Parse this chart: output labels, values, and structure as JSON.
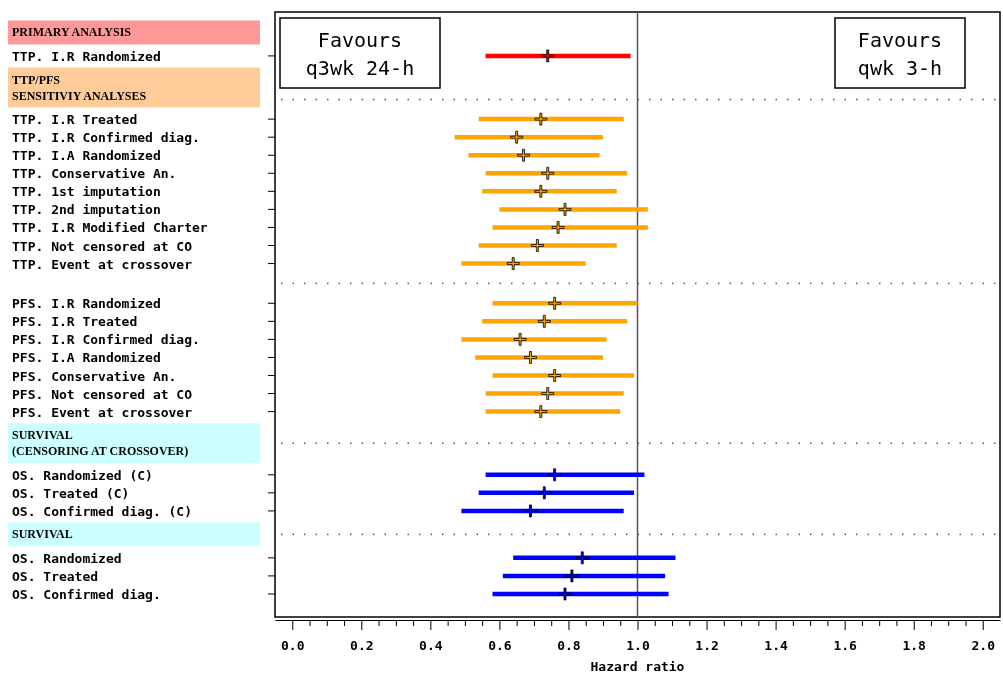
{
  "chart_data": {
    "type": "scatter",
    "orientation": "horizontal",
    "marker": "cross",
    "xlabel": "Hazard ratio",
    "categories": [
      "PRIMARY ANALYSIS",
      "TTP. I.R Randomized",
      "TTP/PFS\nSENSITIVIY ANALYSES",
      "TTP. I.R Treated",
      "TTP. I.R Confirmed diag.",
      "TTP. I.A Randomized",
      "TTP. Conservative An.",
      "TTP. 1st imputation",
      "TTP. 2nd imputation",
      "TTP. I.R Modified Charter",
      "TTP. Not censored at CO",
      "TTP. Event at crossover",
      null,
      "PFS. I.R Randomized",
      "PFS. I.R Treated",
      "PFS. I.R Confirmed diag.",
      "PFS. I.A Randomized",
      "PFS. Conservative An.",
      "PFS. Not censored at CO",
      "PFS. Event at crossover",
      "SURVIVAL\n(CENSORING AT CROSSOVER)",
      "OS. Randomized (C)",
      "OS. Treated (C)",
      "OS. Confirmed diag. (C)",
      "SURVIVAL",
      "OS. Randomized",
      "OS. Treated",
      "OS. Confirmed diag."
    ],
    "values": [
      null,
      0.74,
      null,
      0.72,
      0.65,
      0.67,
      0.74,
      0.72,
      0.79,
      0.77,
      0.71,
      0.64,
      null,
      0.76,
      0.73,
      0.66,
      0.69,
      0.76,
      0.74,
      0.72,
      null,
      0.76,
      0.73,
      0.69,
      null,
      0.84,
      0.81,
      0.79
    ],
    "errors": [
      null,
      [
        0.56,
        0.98
      ],
      null,
      [
        0.54,
        0.96
      ],
      [
        0.47,
        0.9
      ],
      [
        0.51,
        0.89
      ],
      [
        0.56,
        0.97
      ],
      [
        0.55,
        0.94
      ],
      [
        0.6,
        1.03
      ],
      [
        0.58,
        1.03
      ],
      [
        0.54,
        0.94
      ],
      [
        0.49,
        0.85
      ],
      null,
      [
        0.58,
        1.0
      ],
      [
        0.55,
        0.97
      ],
      [
        0.49,
        0.91
      ],
      [
        0.53,
        0.9
      ],
      [
        0.58,
        0.99
      ],
      [
        0.56,
        0.96
      ],
      [
        0.56,
        0.95
      ],
      null,
      [
        0.56,
        1.02
      ],
      [
        0.54,
        0.99
      ],
      [
        0.49,
        0.96
      ],
      null,
      [
        0.64,
        1.11
      ],
      [
        0.61,
        1.08
      ],
      [
        0.58,
        1.09
      ]
    ],
    "colors": [
      null,
      "#ff0000",
      null,
      "#ffa500",
      "#ffa500",
      "#ffa500",
      "#ffa500",
      "#ffa500",
      "#ffa500",
      "#ffa500",
      "#ffa500",
      "#ffa500",
      null,
      "#ffa500",
      "#ffa500",
      "#ffa500",
      "#ffa500",
      "#ffa500",
      "#ffa500",
      "#ffa500",
      null,
      "#0000ff",
      "#0000ff",
      "#0000ff",
      null,
      "#0000ff",
      "#0000ff",
      "#0000ff"
    ],
    "xlim": [
      -0.05,
      2.05
    ],
    "xticks": [
      {
        "value": 0,
        "label": "0.0"
      },
      {
        "value": 0.05,
        "label": null
      },
      {
        "value": 0.1,
        "label": null
      },
      {
        "value": 0.15,
        "label": null
      },
      {
        "value": 0.2,
        "label": "0.2"
      },
      {
        "value": 0.25,
        "label": null
      },
      {
        "value": 0.3,
        "label": null
      },
      {
        "value": 0.35,
        "label": null
      },
      {
        "value": 0.4,
        "label": "0.4"
      },
      {
        "value": 0.45,
        "label": null
      },
      {
        "value": 0.5,
        "label": null
      },
      {
        "value": 0.55,
        "label": null
      },
      {
        "value": 0.6,
        "label": "0.6"
      },
      {
        "value": 0.65,
        "label": null
      },
      {
        "value": 0.7,
        "label": null
      },
      {
        "value": 0.75,
        "label": null
      },
      {
        "value": 0.8,
        "label": "0.8"
      },
      {
        "value": 0.85,
        "label": null
      },
      {
        "value": 0.9,
        "label": null
      },
      {
        "value": 0.95,
        "label": null
      },
      {
        "value": 1.0,
        "label": "1.0"
      },
      {
        "value": 1.05,
        "label": null
      },
      {
        "value": 1.1,
        "label": null
      },
      {
        "value": 1.15,
        "label": null
      },
      {
        "value": 1.2,
        "label": "1.2"
      },
      {
        "value": 1.25,
        "label": null
      },
      {
        "value": 1.3,
        "label": null
      },
      {
        "value": 1.35,
        "label": null
      },
      {
        "value": 1.4,
        "label": "1.4"
      },
      {
        "value": 1.45,
        "label": null
      },
      {
        "value": 1.5,
        "label": null
      },
      {
        "value": 1.55,
        "label": null
      },
      {
        "value": 1.6,
        "label": "1.6"
      },
      {
        "value": 1.65,
        "label": null
      },
      {
        "value": 1.7,
        "label": null
      },
      {
        "value": 1.75,
        "label": null
      },
      {
        "value": 1.8,
        "label": "1.8"
      },
      {
        "value": 1.85,
        "label": null
      },
      {
        "value": 1.9,
        "label": null
      },
      {
        "value": 1.95,
        "label": null
      },
      {
        "value": 2.0,
        "label": "2.0"
      }
    ],
    "ref_lines": [
      {
        "axis": "x",
        "value": 1,
        "color": "#555555"
      }
    ],
    "annotations": [
      "Favours\nq3wk 24-h",
      "Favours\nqwk 3-h"
    ]
  }
}
